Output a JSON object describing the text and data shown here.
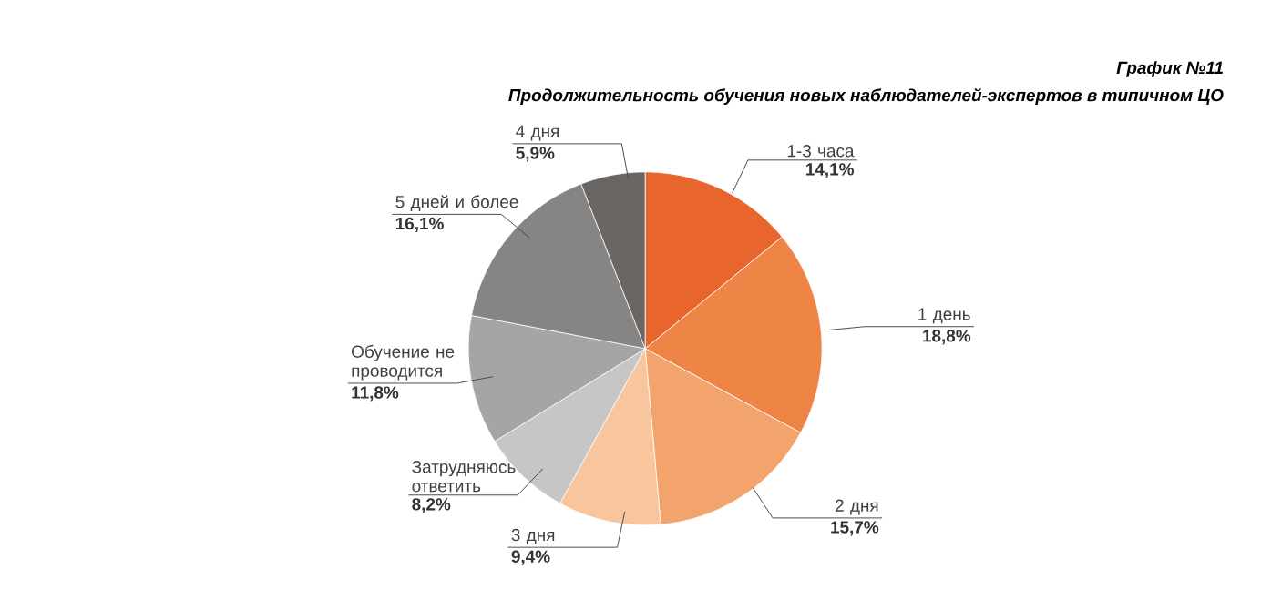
{
  "chart_data": {
    "type": "pie",
    "title": "График №11",
    "subtitle": "Продолжительность обучения новых наблюдателей-экспертов в типичном ЦО",
    "categories": [
      "1-3 часа",
      "1 день",
      "2 дня",
      "3 дня",
      "Затрудняюсь ответить",
      "Обучение не проводится",
      "5 дней и более",
      "4 дня"
    ],
    "values": [
      14.1,
      18.8,
      15.7,
      9.4,
      8.2,
      11.8,
      16.1,
      5.9
    ],
    "value_labels": [
      "14,1%",
      "18,8%",
      "15,7%",
      "9,4%",
      "8,2%",
      "11,8%",
      "16,1%",
      "5,9%"
    ],
    "colors": [
      "#e8652d",
      "#ee8446",
      "#f3a46c",
      "#f8c59c",
      "#c6c6c6",
      "#a5a5a4",
      "#868584",
      "#6a6664"
    ]
  }
}
